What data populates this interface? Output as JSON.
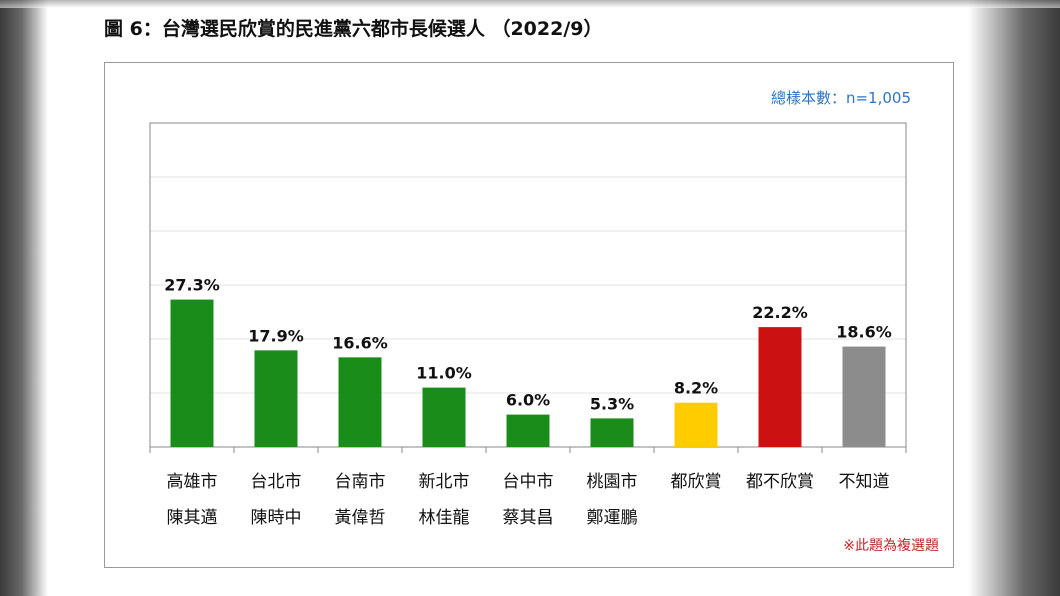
{
  "figure": {
    "title": "圖 6：台灣選民欣賞的民進黨六都市長候選人 （2022/9）",
    "sample_note": "總樣本數：n=1,005",
    "footnote": "※此題為複選題"
  },
  "colors": {
    "green": "#1a8c1a",
    "yellow": "#ffcc00",
    "red": "#cc1111",
    "gray": "#8c8c8c",
    "sample_note": "#2e74c4",
    "footnote": "#c0282a"
  },
  "chart_data": {
    "type": "bar",
    "title": "",
    "xlabel": "",
    "ylabel": "",
    "ylim": [
      0,
      60
    ],
    "grid": true,
    "categories": [
      [
        "高雄市",
        "陳其邁"
      ],
      [
        "台北市",
        "陳時中"
      ],
      [
        "台南市",
        "黃偉哲"
      ],
      [
        "新北市",
        "林佳龍"
      ],
      [
        "台中市",
        "蔡其昌"
      ],
      [
        "桃園市",
        "鄭運鵬"
      ],
      [
        "都欣賞"
      ],
      [
        "都不欣賞"
      ],
      [
        "不知道"
      ]
    ],
    "values": [
      27.3,
      17.9,
      16.6,
      11.0,
      6.0,
      5.3,
      8.2,
      22.2,
      18.6
    ],
    "value_labels": [
      "27.3%",
      "17.9%",
      "16.6%",
      "11.0%",
      "6.0%",
      "5.3%",
      "8.2%",
      "22.2%",
      "18.6%"
    ],
    "bar_colors": [
      "green",
      "green",
      "green",
      "green",
      "green",
      "green",
      "yellow",
      "red",
      "gray"
    ]
  }
}
